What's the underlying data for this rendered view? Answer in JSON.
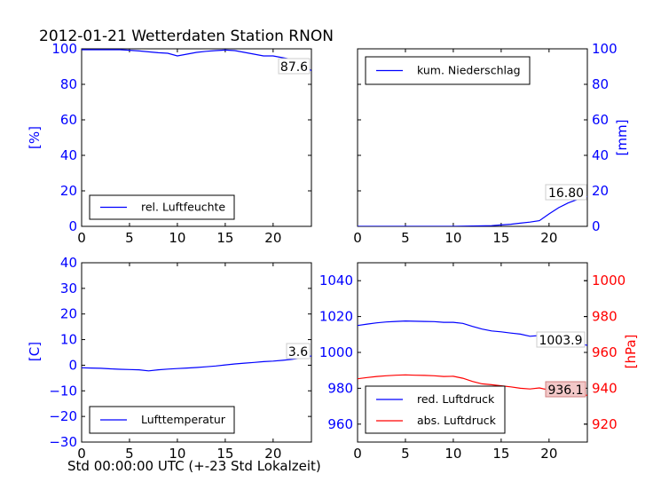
{
  "figure": {
    "title": "2012-01-21 Wetterdaten Station RNON",
    "xlabel": "Std 00:00:00 UTC (+-23 Std Lokalzeit)"
  },
  "colors": {
    "blue": "#0000ff",
    "red": "#ff0000",
    "label_box": "#f2c8c8"
  },
  "chart_data": [
    {
      "type": "line",
      "id": "humidity",
      "title": "",
      "xlabel": "",
      "ylabel": "[%]",
      "xlim": [
        0,
        24
      ],
      "ylim": [
        0,
        100
      ],
      "xticks": [
        0,
        5,
        10,
        15,
        20
      ],
      "yticks": [
        0,
        20,
        40,
        60,
        80,
        100
      ],
      "y_axis_side": "left",
      "legend": {
        "placement": "lower-left",
        "entries": [
          "rel. Luftfeuchte"
        ]
      },
      "annotation": "87.6",
      "series": [
        {
          "name": "rel. Luftfeuchte",
          "color": "#0000ff",
          "x": [
            0,
            2,
            4,
            5,
            6,
            7,
            8,
            9,
            10,
            11,
            12,
            13,
            14,
            15,
            16,
            17,
            18,
            19,
            20,
            21,
            22,
            23,
            23.5,
            24
          ],
          "y": [
            99.5,
            99.5,
            99.5,
            99.2,
            98.8,
            98.3,
            97.8,
            97.5,
            96,
            97,
            98,
            98.6,
            99,
            99.3,
            99,
            98,
            97,
            96,
            96,
            95,
            94,
            92,
            90,
            87.6
          ]
        }
      ]
    },
    {
      "type": "line",
      "id": "precipitation",
      "title": "",
      "xlabel": "",
      "ylabel": "[mm]",
      "xlim": [
        0,
        24
      ],
      "ylim": [
        0,
        100
      ],
      "xticks": [
        0,
        5,
        10,
        15,
        20
      ],
      "yticks": [
        0,
        20,
        40,
        60,
        80,
        100
      ],
      "y_axis_side": "right",
      "legend": {
        "placement": "upper-left",
        "entries": [
          "kum. Niederschlag"
        ]
      },
      "annotation": "16.80",
      "series": [
        {
          "name": "kum. Niederschlag",
          "color": "#0000ff",
          "x": [
            0,
            5,
            10,
            12,
            14,
            15,
            16,
            17,
            18,
            19,
            20,
            21,
            22,
            23,
            24
          ],
          "y": [
            0,
            0,
            0,
            0.2,
            0.4,
            0.8,
            1.2,
            1.8,
            2.4,
            3.2,
            7,
            10.5,
            13.2,
            15.2,
            16.8
          ]
        }
      ]
    },
    {
      "type": "line",
      "id": "temperature",
      "title": "",
      "xlabel": "",
      "ylabel": "[C]",
      "xlim": [
        0,
        24
      ],
      "ylim": [
        -30,
        40
      ],
      "xticks": [
        0,
        5,
        10,
        15,
        20
      ],
      "yticks": [
        -30,
        -20,
        -10,
        0,
        10,
        20,
        30,
        40
      ],
      "y_axis_side": "left",
      "legend": {
        "placement": "lower-left",
        "entries": [
          "Lufttemperatur"
        ]
      },
      "annotation": "3.6",
      "series": [
        {
          "name": "Lufttemperatur",
          "color": "#0000ff",
          "x": [
            0,
            1,
            2,
            3,
            4,
            5,
            6,
            7,
            8,
            9,
            10,
            11,
            12,
            13,
            14,
            15,
            16,
            17,
            18,
            19,
            20,
            21,
            22,
            23,
            24
          ],
          "y": [
            -1,
            -1.1,
            -1.2,
            -1.4,
            -1.6,
            -1.7,
            -1.8,
            -2.2,
            -1.8,
            -1.5,
            -1.3,
            -1.1,
            -0.9,
            -0.6,
            -0.3,
            0.1,
            0.5,
            0.8,
            1.1,
            1.4,
            1.6,
            1.9,
            2.3,
            2.8,
            3.6
          ]
        }
      ]
    },
    {
      "type": "line",
      "id": "pressure",
      "title": "",
      "xlabel": "",
      "ylabel": "[hPa]",
      "xlim": [
        0,
        24
      ],
      "ylim": [
        950,
        1050
      ],
      "xticks": [
        0,
        5,
        10,
        15,
        20
      ],
      "yticks": [
        960,
        980,
        1000,
        1020,
        1040
      ],
      "y2lim": [
        910,
        1010
      ],
      "y2ticks": [
        920,
        940,
        960,
        980,
        1000
      ],
      "legend": {
        "placement": "lower-left",
        "entries": [
          "red. Luftdruck",
          "abs. Luftdruck"
        ]
      },
      "annotations": [
        "1003.9",
        "936.1"
      ],
      "series": [
        {
          "name": "red. Luftdruck",
          "color": "#0000ff",
          "axis": "left",
          "x": [
            0,
            1,
            2,
            3,
            4,
            5,
            6,
            7,
            8,
            9,
            10,
            11,
            12,
            13,
            14,
            15,
            16,
            17,
            18,
            19,
            20,
            21,
            22,
            23,
            24
          ],
          "y": [
            1015,
            1015.8,
            1016.5,
            1017,
            1017.3,
            1017.5,
            1017.4,
            1017.3,
            1017.2,
            1016.8,
            1016.8,
            1016.2,
            1014.5,
            1013,
            1012,
            1011.5,
            1010.8,
            1010.2,
            1009,
            1009.4,
            1008,
            1007.3,
            1006.6,
            1005.2,
            1003.9
          ]
        },
        {
          "name": "abs. Luftdruck",
          "color": "#ff0000",
          "axis": "right",
          "x": [
            0,
            1,
            2,
            3,
            4,
            5,
            6,
            7,
            8,
            9,
            10,
            11,
            12,
            13,
            14,
            15,
            16,
            17,
            18,
            19,
            20,
            21,
            22,
            23,
            24
          ],
          "y": [
            945.3,
            946,
            946.6,
            947,
            947.3,
            947.5,
            947.3,
            947.2,
            947,
            946.6,
            946.7,
            945.6,
            943.8,
            942.5,
            942,
            941.4,
            940.8,
            940,
            939.6,
            940.2,
            939,
            938,
            937.4,
            936.6,
            936.1
          ]
        }
      ]
    }
  ]
}
